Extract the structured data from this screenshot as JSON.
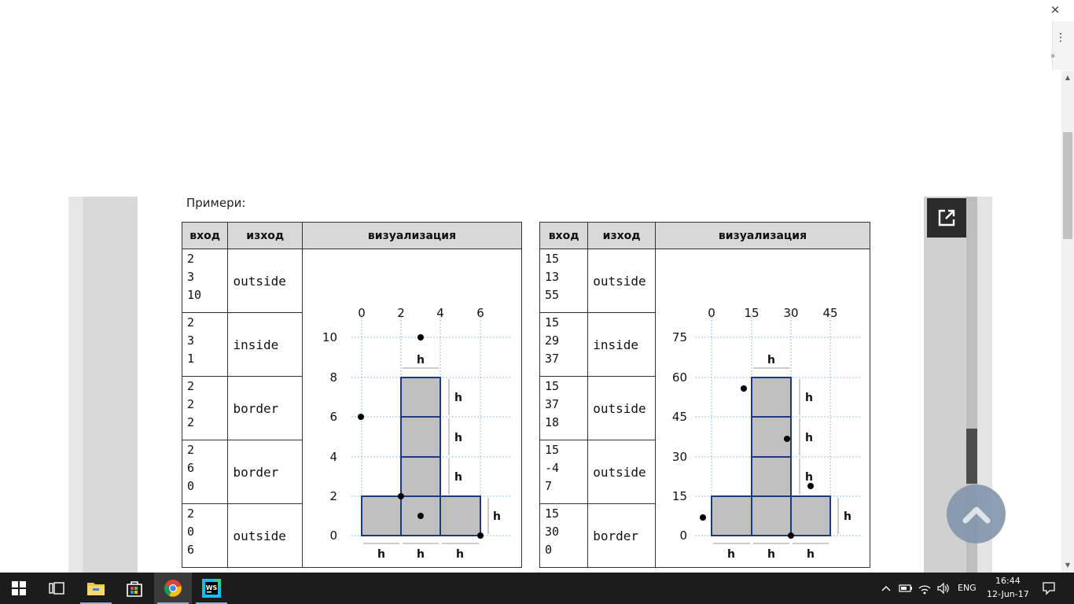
{
  "window": {
    "close_glyph": "×"
  },
  "side_panel": {
    "menu_glyph": "⋮",
    "expand_glyph": "»"
  },
  "document": {
    "examples_label": "Примери:",
    "headers": {
      "input": "вход",
      "output": "изход",
      "visualization": "визуализация"
    },
    "table_left": {
      "rows": [
        {
          "input": [
            "2",
            "3",
            "10"
          ],
          "output": "outside"
        },
        {
          "input": [
            "2",
            "3",
            "1"
          ],
          "output": "inside"
        },
        {
          "input": [
            "2",
            "2",
            "2"
          ],
          "output": "border"
        },
        {
          "input": [
            "2",
            "6",
            "0"
          ],
          "output": "border"
        },
        {
          "input": [
            "2",
            "0",
            "6"
          ],
          "output": "outside"
        }
      ],
      "viz": {
        "x_ticks": [
          "0",
          "2",
          "4",
          "6"
        ],
        "y_ticks": [
          "10",
          "8",
          "6",
          "4",
          "2",
          "0"
        ],
        "dim_label": "h"
      }
    },
    "table_right": {
      "rows": [
        {
          "input": [
            "15",
            "13",
            "55"
          ],
          "output": "outside"
        },
        {
          "input": [
            "15",
            "29",
            "37"
          ],
          "output": "inside"
        },
        {
          "input": [
            "15",
            "37",
            "18"
          ],
          "output": "outside"
        },
        {
          "input": [
            "15",
            "-4",
            "7"
          ],
          "output": "outside"
        },
        {
          "input": [
            "15",
            "30",
            "0"
          ],
          "output": "border"
        }
      ],
      "viz": {
        "x_ticks": [
          "0",
          "15",
          "30",
          "45"
        ],
        "y_ticks": [
          "75",
          "60",
          "45",
          "30",
          "15",
          "0"
        ],
        "dim_label": "h"
      }
    }
  },
  "taskbar": {
    "apps": [
      "start-icon",
      "task-view-icon",
      "file-explorer-icon",
      "store-icon",
      "chrome-icon",
      "webstorm-icon"
    ],
    "language": "ENG",
    "time": "16:44",
    "date": "12-Jun-17"
  },
  "colors": {
    "outline": "#1f3a7a",
    "cell_fill": "#c0c0c0",
    "header_fill": "#d8d8d8",
    "taskbar": "#1c1c1c"
  }
}
